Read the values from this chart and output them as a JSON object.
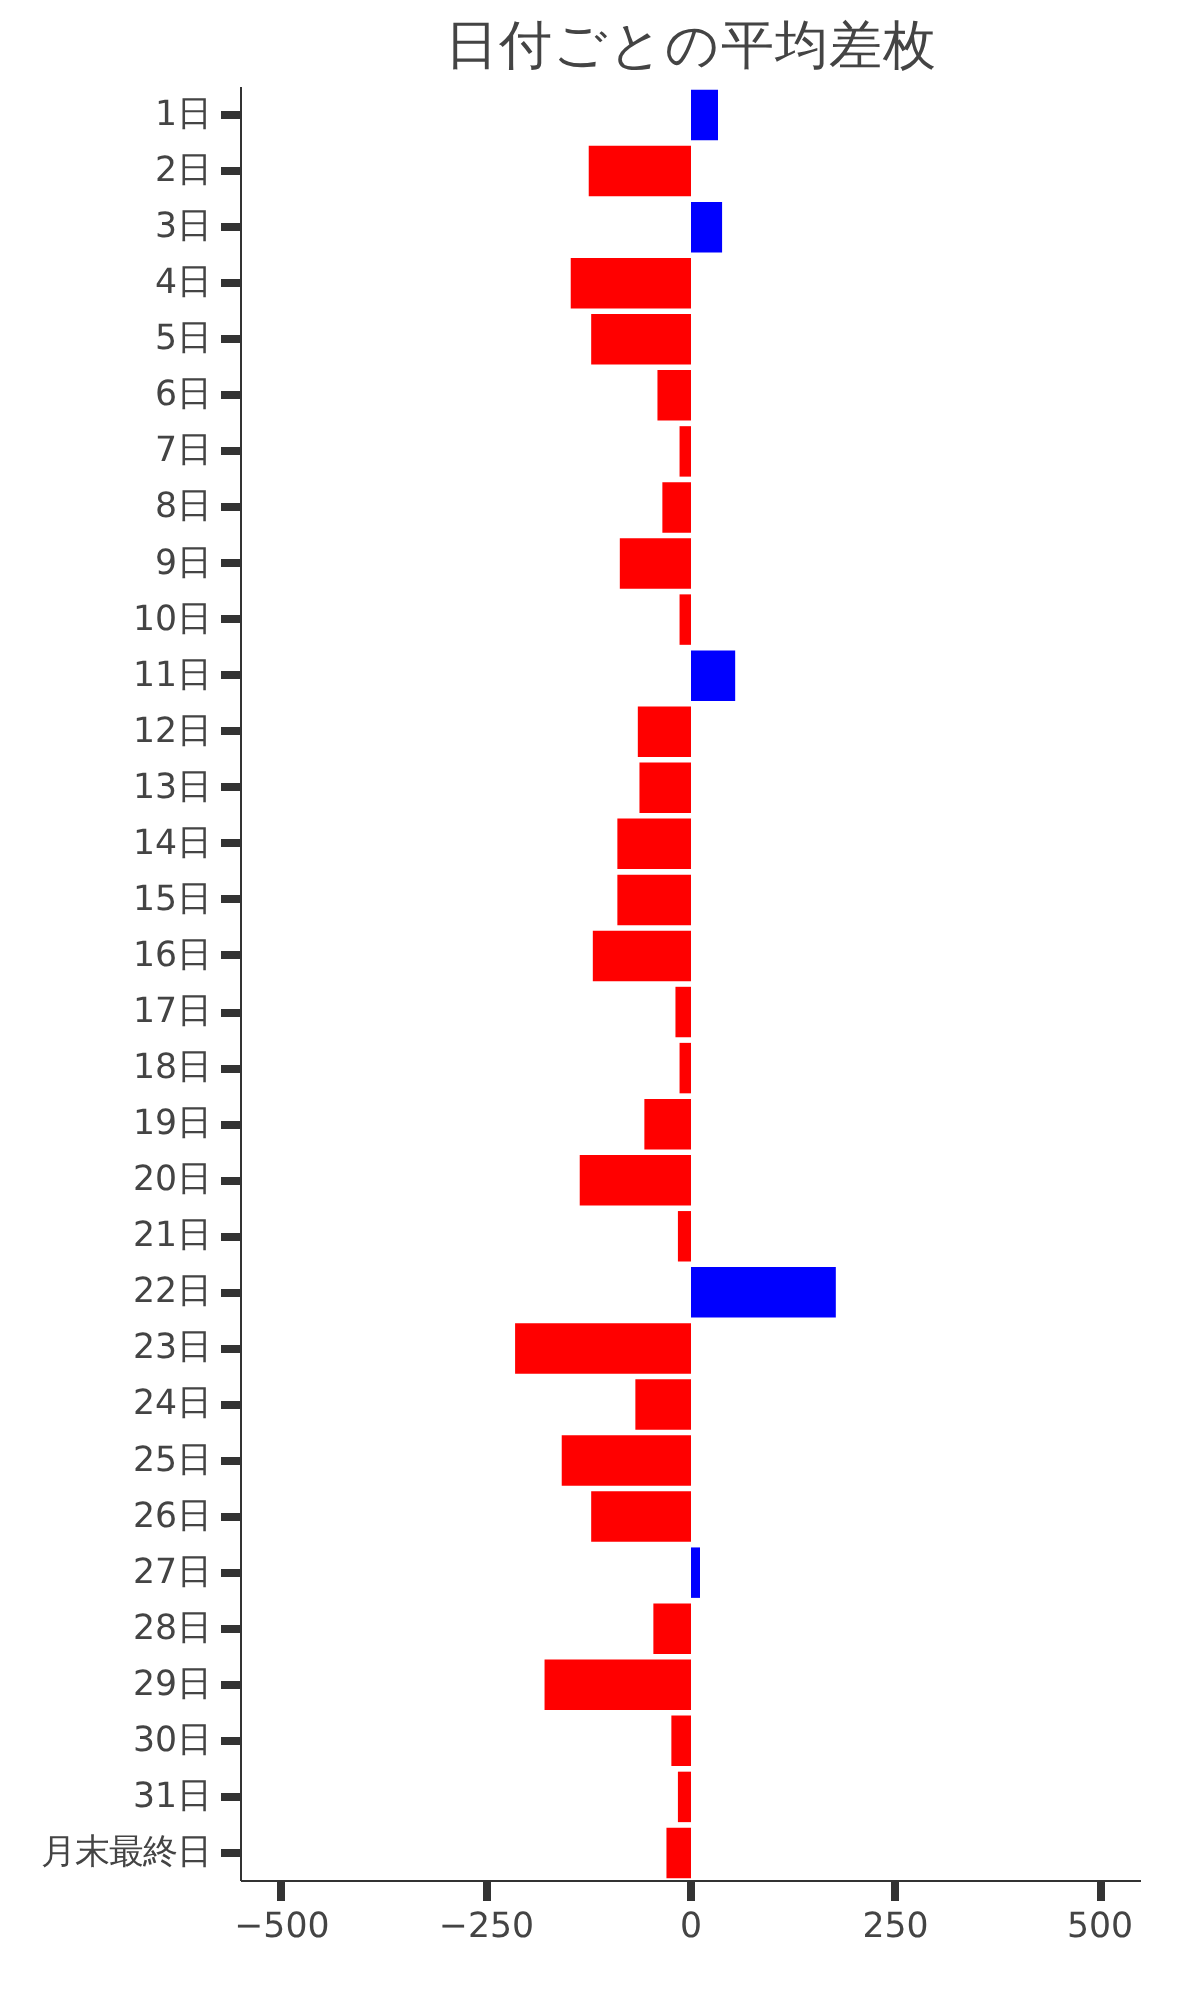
{
  "chart_data": {
    "type": "bar",
    "orientation": "horizontal",
    "title": "日付ごとの平均差枚",
    "categories": [
      "1日",
      "2日",
      "3日",
      "4日",
      "5日",
      "6日",
      "7日",
      "8日",
      "9日",
      "10日",
      "11日",
      "12日",
      "13日",
      "14日",
      "15日",
      "16日",
      "17日",
      "18日",
      "19日",
      "20日",
      "21日",
      "22日",
      "23日",
      "24日",
      "25日",
      "26日",
      "27日",
      "28日",
      "29日",
      "30日",
      "31日",
      "月末最終日"
    ],
    "values": [
      33,
      -125,
      38,
      -147,
      -122,
      -41,
      -14,
      -35,
      -87,
      -14,
      54,
      -65,
      -63,
      -90,
      -90,
      -120,
      -19,
      -14,
      -57,
      -136,
      -16,
      177,
      -215,
      -68,
      -158,
      -122,
      11,
      -46,
      -179,
      -24,
      -16,
      -30
    ],
    "colors": [
      "#0000ff",
      "#ff0000",
      "#0000ff",
      "#ff0000",
      "#ff0000",
      "#ff0000",
      "#ff0000",
      "#ff0000",
      "#ff0000",
      "#ff0000",
      "#0000ff",
      "#ff0000",
      "#ff0000",
      "#ff0000",
      "#ff0000",
      "#ff0000",
      "#ff0000",
      "#ff0000",
      "#ff0000",
      "#ff0000",
      "#ff0000",
      "#0000ff",
      "#ff0000",
      "#ff0000",
      "#ff0000",
      "#ff0000",
      "#0000ff",
      "#ff0000",
      "#ff0000",
      "#ff0000",
      "#ff0000",
      "#ff0000"
    ],
    "xlim": [
      -550,
      550
    ],
    "xticks": [
      -500,
      -250,
      0,
      250,
      500
    ],
    "grid": false
  }
}
